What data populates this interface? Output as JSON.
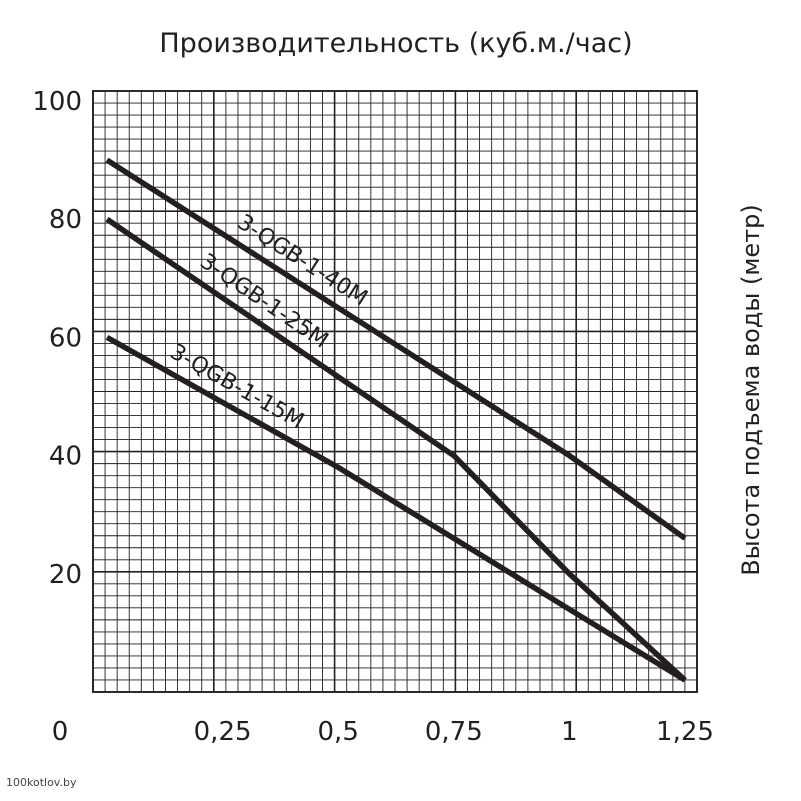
{
  "chart_data": {
    "type": "line",
    "title": "Производительность (куб.м./час)",
    "xlabel": "",
    "ylabel": "Высота подъема воды (метр)",
    "xlim": [
      0,
      1.25
    ],
    "ylim": [
      0,
      100
    ],
    "origin_label": "0",
    "x_ticks": [
      {
        "value": 0.25,
        "label": "0,25"
      },
      {
        "value": 0.5,
        "label": "0,5"
      },
      {
        "value": 0.75,
        "label": "0,75"
      },
      {
        "value": 1,
        "label": "1"
      },
      {
        "value": 1.25,
        "label": "1,25"
      }
    ],
    "y_ticks": [
      {
        "value": 20,
        "label": "20"
      },
      {
        "value": 40,
        "label": "40"
      },
      {
        "value": 60,
        "label": "60"
      },
      {
        "value": 80,
        "label": "80"
      },
      {
        "value": 100,
        "label": "100"
      }
    ],
    "grid": true,
    "legend": "none",
    "series": [
      {
        "name": "3-QGB-1-40M",
        "x": [
          0,
          1,
          1.25
        ],
        "y": [
          90,
          40,
          26
        ],
        "color": "#231f20"
      },
      {
        "name": "3-QGB-1-25M",
        "x": [
          0,
          0.75,
          1,
          1.25
        ],
        "y": [
          80,
          40,
          20,
          2
        ],
        "color": "#231f20"
      },
      {
        "name": "3-QGB-1-15M",
        "x": [
          0,
          0.5,
          1,
          1.25
        ],
        "y": [
          60,
          38,
          14,
          2
        ],
        "color": "#231f20"
      }
    ]
  },
  "watermark": "100kotlov.by"
}
